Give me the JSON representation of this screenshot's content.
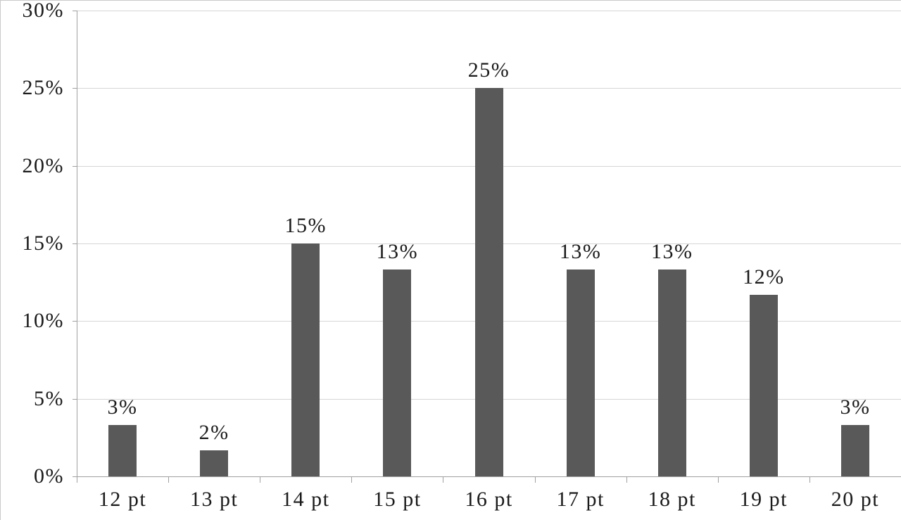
{
  "chart_data": {
    "type": "bar",
    "title": "",
    "xlabel": "",
    "ylabel": "",
    "categories": [
      "12 pt",
      "13 pt",
      "14 pt",
      "15 pt",
      "16 pt",
      "17 pt",
      "18 pt",
      "19 pt",
      "20 pt"
    ],
    "values": [
      3.33,
      1.67,
      15,
      13.33,
      25,
      13.33,
      13.33,
      11.67,
      3.33
    ],
    "value_labels": [
      "3%",
      "2%",
      "15%",
      "13%",
      "25%",
      "13%",
      "13%",
      "12%",
      "3%"
    ],
    "ylim": [
      0,
      30
    ],
    "yticks": [
      0,
      5,
      10,
      15,
      20,
      25,
      30
    ],
    "ytick_labels": [
      "0%",
      "5%",
      "10%",
      "15%",
      "20%",
      "25%",
      "30%"
    ],
    "grid": true,
    "legend": false,
    "colors": {
      "bar": "#595959",
      "gridline": "#d6d6d6",
      "axis": "#a0a0a0",
      "text": "#1a1a1a",
      "background": "#ffffff"
    }
  }
}
